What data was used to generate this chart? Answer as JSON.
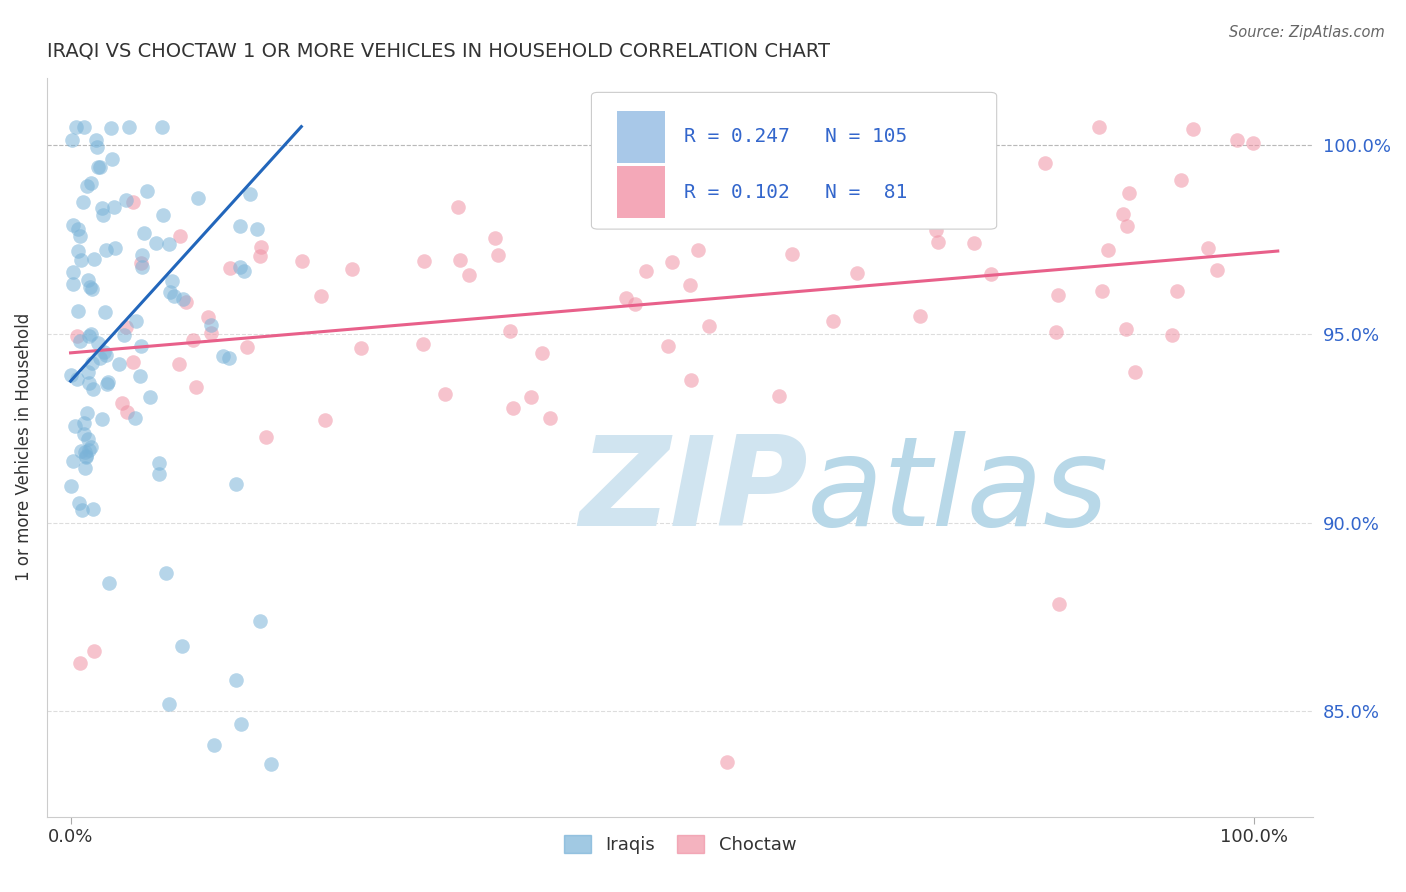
{
  "title": "IRAQI VS CHOCTAW 1 OR MORE VEHICLES IN HOUSEHOLD CORRELATION CHART",
  "source_text": "Source: ZipAtlas.com",
  "ylabel": "1 or more Vehicles in Household",
  "xlim": [
    -0.02,
    1.05
  ],
  "ylim": [
    0.822,
    1.018
  ],
  "x_ticks": [
    0.0,
    1.0
  ],
  "x_tick_labels": [
    "0.0%",
    "100.0%"
  ],
  "y_ticks": [
    0.85,
    0.9,
    0.95,
    1.0
  ],
  "y_tick_labels": [
    "85.0%",
    "90.0%",
    "95.0%",
    "100.0%"
  ],
  "iraqis_color": "#7ab3d8",
  "choctaw_color": "#f093a5",
  "trendline_iraqi_color": "#2266bb",
  "trendline_choctaw_color": "#e8608a",
  "watermark_zip": "ZIP",
  "watermark_atlas": "atlas",
  "watermark_color_zip": "#d0e4f0",
  "watermark_color_atlas": "#b8d8e8",
  "background_color": "#ffffff",
  "legend_box_color_iraqi": "#a8c8e8",
  "legend_box_color_choctaw": "#f4a8b8",
  "legend_text_color": "#3366cc",
  "trendline_iraqi_x0": 0.0,
  "trendline_iraqi_x1": 0.195,
  "trendline_iraqi_y0": 0.9375,
  "trendline_iraqi_y1": 1.005,
  "trendline_choctaw_x0": 0.0,
  "trendline_choctaw_x1": 1.02,
  "trendline_choctaw_y0": 0.945,
  "trendline_choctaw_y1": 0.972,
  "dashed_line_y": 1.0,
  "dot_size": 110,
  "dot_alpha": 0.55
}
